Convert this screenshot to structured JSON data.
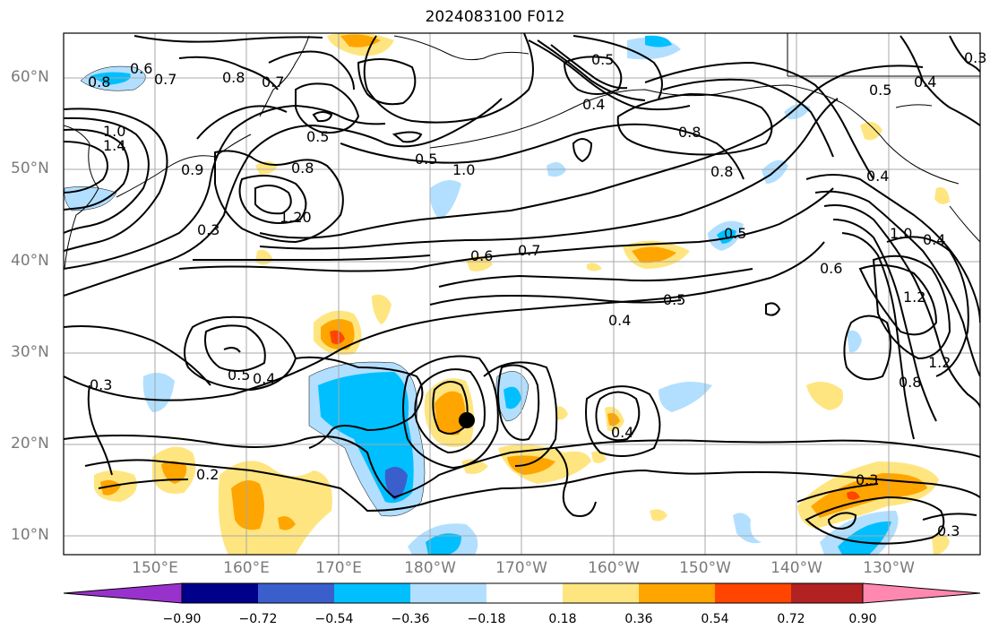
{
  "title": "2024083100 F012",
  "lat_labels": [
    "60°N",
    "50°N",
    "40°N",
    "30°N",
    "20°N",
    "10°N"
  ],
  "lon_labels": [
    "150°E",
    "160°E",
    "170°E",
    "180°W",
    "170°W",
    "160°W",
    "150°W",
    "140°W",
    "130°W"
  ],
  "colorbar": {
    "ticks": [
      "−0.90",
      "−0.72",
      "−0.54",
      "−0.36",
      "−0.18",
      "0.18",
      "0.36",
      "0.54",
      "0.72",
      "0.90"
    ],
    "colors": [
      "#9932cc",
      "#00008b",
      "#3a5fcd",
      "#00bfff",
      "#b2dfff",
      "#ffffff",
      "#ffe57f",
      "#ffa500",
      "#ff4500",
      "#b22222",
      "#ff88b0"
    ]
  },
  "contour_labels": [
    "0.6",
    "0.7",
    "0.8",
    "0.8",
    "0.7",
    "1.0",
    "1.4",
    "0.9",
    "0.5",
    "0.8",
    "1.20",
    "0.3",
    "0.5",
    "1.0",
    "0.5",
    "0.4",
    "0.8",
    "0.8",
    "0.5",
    "0.4",
    "0.6",
    "0.7",
    "0.5",
    "0.4",
    "0.6",
    "1.0",
    "1.2",
    "0.4",
    "1.2",
    "0.8",
    "0.5",
    "0.4",
    "0.3",
    "0.2",
    "0.5",
    "0.4",
    "0.4",
    "0.3",
    "0.3",
    "0.3"
  ],
  "marker": "storm-center"
}
